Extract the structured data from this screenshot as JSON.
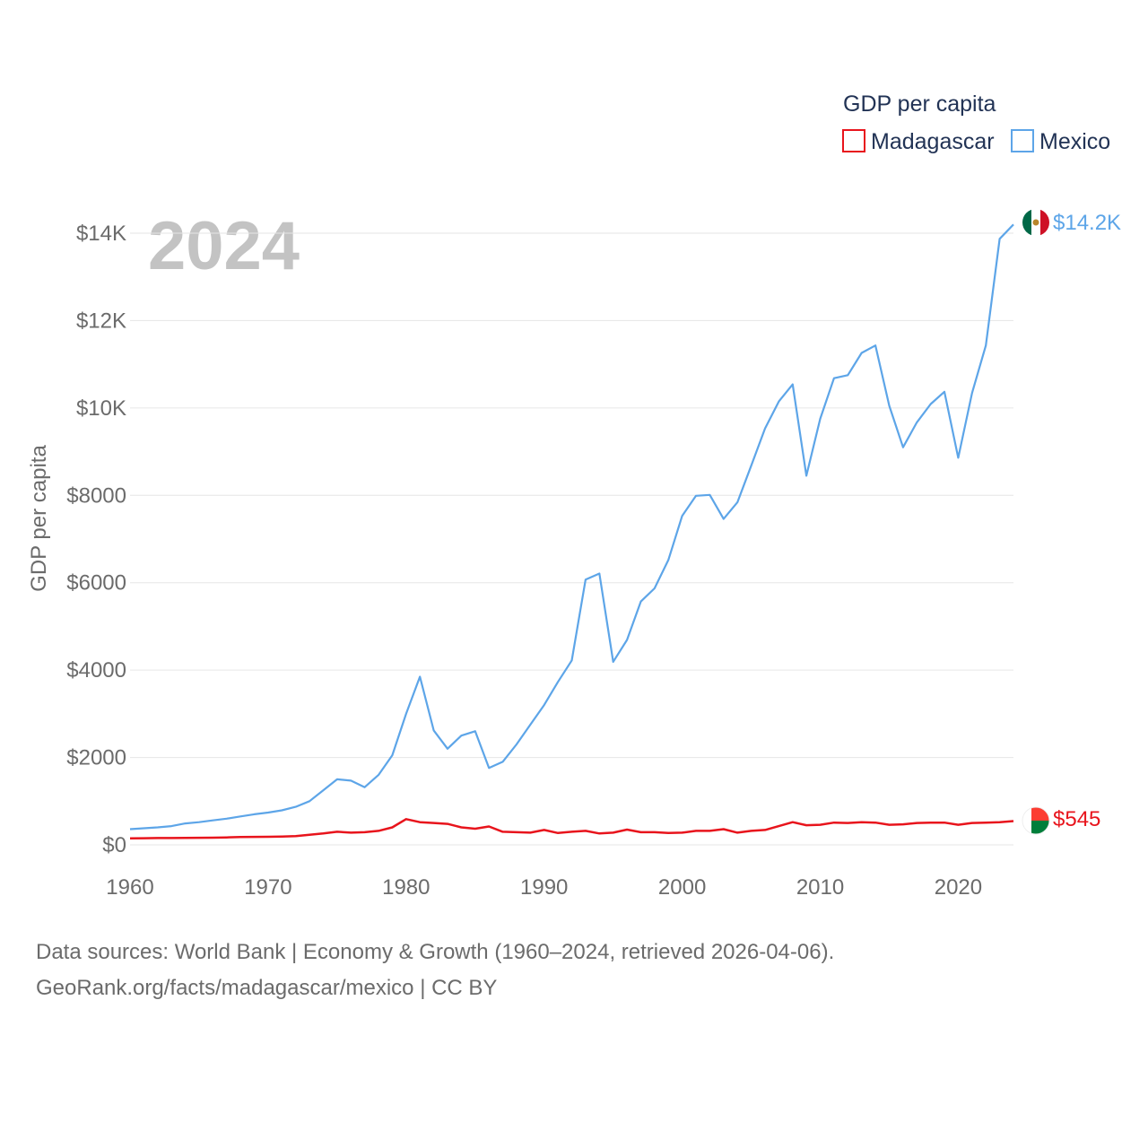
{
  "chart_data": {
    "type": "line",
    "title": "GDP per capita",
    "year_watermark": "2024",
    "ylabel": "GDP per capita",
    "xlabel": "",
    "xlim": [
      1960,
      2024
    ],
    "ylim": [
      0,
      14000
    ],
    "grid": true,
    "legend": {
      "title": "GDP per capita",
      "placement": "top-right"
    },
    "x_ticks": [
      1960,
      1970,
      1980,
      1990,
      2000,
      2010,
      2020
    ],
    "x_tick_labels": [
      "1960",
      "1970",
      "1980",
      "1990",
      "2000",
      "2010",
      "2020"
    ],
    "y_ticks": [
      0,
      2000,
      4000,
      6000,
      8000,
      10000,
      12000,
      14000
    ],
    "y_tick_labels": [
      "$0",
      "$2000",
      "$4000",
      "$6000",
      "$8000",
      "$10K",
      "$12K",
      "$14K"
    ],
    "x": [
      1960,
      1961,
      1962,
      1963,
      1964,
      1965,
      1966,
      1967,
      1968,
      1969,
      1970,
      1971,
      1972,
      1973,
      1974,
      1975,
      1976,
      1977,
      1978,
      1979,
      1980,
      1981,
      1982,
      1983,
      1984,
      1985,
      1986,
      1987,
      1988,
      1989,
      1990,
      1991,
      1992,
      1993,
      1994,
      1995,
      1996,
      1997,
      1998,
      1999,
      2000,
      2001,
      2002,
      2003,
      2004,
      2005,
      2006,
      2007,
      2008,
      2009,
      2010,
      2011,
      2012,
      2013,
      2014,
      2015,
      2016,
      2017,
      2018,
      2019,
      2020,
      2021,
      2022,
      2023,
      2024
    ],
    "series": [
      {
        "name": "Madagascar",
        "color": "#e8141c",
        "end_label": "$545",
        "values": [
          150,
          152,
          155,
          157,
          160,
          162,
          165,
          170,
          178,
          182,
          185,
          190,
          200,
          230,
          260,
          300,
          280,
          290,
          320,
          400,
          590,
          520,
          500,
          480,
          400,
          370,
          420,
          300,
          290,
          280,
          340,
          270,
          300,
          320,
          260,
          280,
          350,
          290,
          290,
          270,
          280,
          320,
          320,
          360,
          280,
          320,
          340,
          430,
          520,
          450,
          460,
          510,
          500,
          520,
          510,
          460,
          470,
          500,
          510,
          510,
          460,
          500,
          510,
          520,
          545
        ]
      },
      {
        "name": "Mexico",
        "color": "#5da5e8",
        "end_label": "$14.2K",
        "values": [
          360,
          380,
          400,
          430,
          490,
          520,
          560,
          600,
          650,
          700,
          740,
          790,
          870,
          1000,
          1250,
          1500,
          1470,
          1320,
          1600,
          2050,
          3000,
          3850,
          2620,
          2200,
          2500,
          2600,
          1760,
          1900,
          2300,
          2750,
          3200,
          3730,
          4220,
          6070,
          6210,
          4190,
          4690,
          5570,
          5870,
          6520,
          7530,
          7990,
          8010,
          7460,
          7840,
          8680,
          9530,
          10150,
          10540,
          8450,
          9750,
          10680,
          10750,
          11260,
          11430,
          10050,
          9100,
          9670,
          10090,
          10370,
          8860,
          10340,
          11430,
          13870,
          14200
        ]
      }
    ]
  },
  "footer": {
    "line1": "Data sources: World Bank | Economy & Growth (1960–2024, retrieved 2026-04-06).",
    "line2": "GeoRank.org/facts/madagascar/mexico | CC BY"
  },
  "icons": {
    "mexico_flag": "mexico-flag-icon",
    "madagascar_flag": "madagascar-flag-icon"
  },
  "flag_colors": {
    "mexico": [
      "#006847",
      "#ffffff",
      "#ce1126"
    ],
    "madagascar": [
      "#ffffff",
      "#fc3d32",
      "#007e3a"
    ]
  }
}
